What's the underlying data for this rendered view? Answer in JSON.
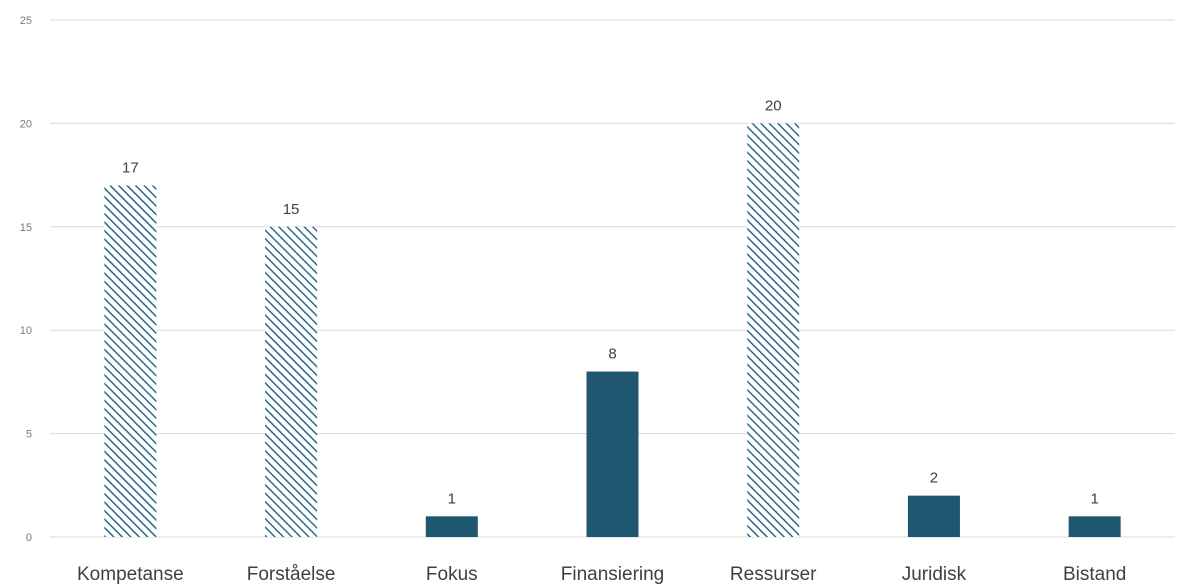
{
  "colors": {
    "solid": "#1f5670",
    "hatch": "#2b6a86",
    "grid": "#d9d9d9",
    "axis_text": "#7a7a7a",
    "label_text": "#404040"
  },
  "chart_data": {
    "type": "bar",
    "title": "",
    "xlabel": "",
    "ylabel": "",
    "ylim": [
      0,
      25
    ],
    "yticks": [
      0,
      5,
      10,
      15,
      20,
      25
    ],
    "grid": true,
    "categories": [
      "Kompetanse",
      "Forståelse",
      "Fokus",
      "Finansiering",
      "Ressurser",
      "Juridisk",
      "Bistand"
    ],
    "values": [
      17,
      15,
      1,
      8,
      20,
      2,
      1
    ],
    "fill_styles": [
      "hatched",
      "hatched",
      "solid",
      "solid",
      "hatched",
      "solid",
      "solid"
    ],
    "data_labels": [
      "17",
      "15",
      "1",
      "8",
      "20",
      "2",
      "1"
    ]
  }
}
